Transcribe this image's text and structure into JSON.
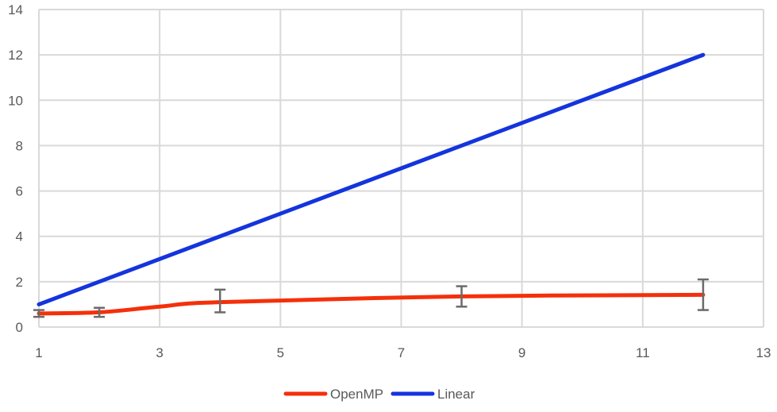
{
  "chart_data": {
    "type": "line",
    "title": "",
    "xlabel": "",
    "ylabel": "",
    "xlim": [
      1,
      13
    ],
    "ylim": [
      0,
      14
    ],
    "x_ticks": [
      1,
      3,
      5,
      7,
      9,
      11,
      13
    ],
    "y_ticks": [
      0,
      2,
      4,
      6,
      8,
      10,
      12,
      14
    ],
    "grid": true,
    "legend_position": "bottom",
    "series": [
      {
        "name": "OpenMP",
        "color": "#f4300b",
        "smooth": true,
        "x": [
          1,
          2,
          3,
          4,
          8,
          12
        ],
        "y": [
          0.6,
          0.65,
          0.9,
          1.1,
          1.35,
          1.42
        ],
        "error_bars": [
          {
            "x": 1,
            "low": 0.45,
            "high": 0.75
          },
          {
            "x": 2,
            "low": 0.45,
            "high": 0.85
          },
          {
            "x": 4,
            "low": 0.65,
            "high": 1.65
          },
          {
            "x": 8,
            "low": 0.9,
            "high": 1.8
          },
          {
            "x": 12,
            "low": 0.75,
            "high": 2.1
          }
        ]
      },
      {
        "name": "Linear",
        "color": "#1434dc",
        "smooth": false,
        "x": [
          1,
          12
        ],
        "y": [
          1,
          12
        ]
      }
    ]
  }
}
